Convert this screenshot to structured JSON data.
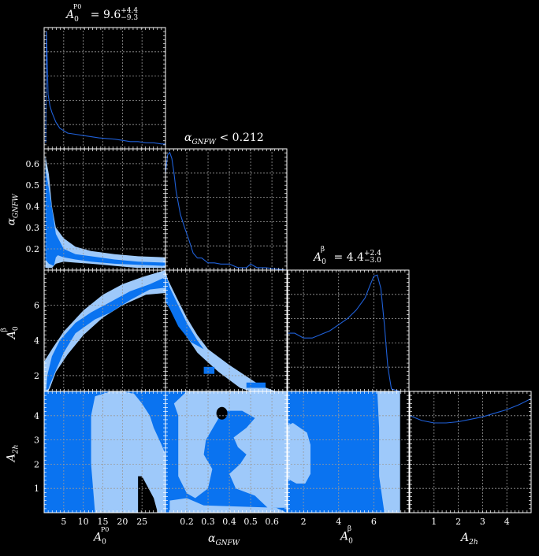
{
  "colors": {
    "background": "#000000",
    "axis": "#ffffff",
    "grid": "#9a9a9a",
    "contour_outer": "#9ec9fa",
    "contour_inner": "#0a73f0",
    "line": "#1f60d8"
  },
  "titles": {
    "p0": {
      "sym": "A",
      "sub": "0",
      "sup": "P0",
      "eq": "= 9.6",
      "plus": "+4.4",
      "minus": "−9.3"
    },
    "alpha": {
      "sym": "α",
      "sub": "GNFW",
      "eq": " < 0.212"
    },
    "beta": {
      "sym": "A",
      "sub": "0",
      "sup": "β",
      "eq": "= 4.4",
      "plus": "+2.4",
      "minus": "−3.0"
    }
  },
  "xlabels": {
    "p0": {
      "sym": "A",
      "sub": "0",
      "sup": "P0"
    },
    "alpha": {
      "sym": "α",
      "sub": "GNFW"
    },
    "beta": {
      "sym": "A",
      "sub": "0",
      "sup": "β"
    },
    "a2h": {
      "sym": "A",
      "sub": "2h"
    }
  },
  "ylabels": {
    "alpha": {
      "sym": "α",
      "sub": "GNFW"
    },
    "beta": {
      "sym": "A",
      "sub": "0",
      "sup": "β"
    },
    "a2h": {
      "sym": "A",
      "sub": "2h"
    }
  },
  "chart_data": {
    "type": "corner",
    "parameters": [
      {
        "id": "p0",
        "range": [
          0,
          31
        ],
        "ticks": [
          "5",
          "10",
          "15",
          "20",
          "25"
        ],
        "tick_values": [
          5,
          10,
          15,
          20,
          25
        ]
      },
      {
        "id": "alpha",
        "range": [
          0.1,
          0.67
        ],
        "ticks": [
          "0.2",
          "0.3",
          "0.4",
          "0.5",
          "0.6"
        ],
        "tick_values": [
          0.2,
          0.3,
          0.4,
          0.5,
          0.6
        ]
      },
      {
        "id": "beta",
        "range": [
          1.1,
          8.0
        ],
        "ticks": [
          "2",
          "4",
          "6"
        ],
        "tick_values": [
          2,
          4,
          6
        ]
      },
      {
        "id": "a2h",
        "range": [
          0,
          5.0
        ],
        "ticks": [
          "1",
          "2",
          "3",
          "4"
        ],
        "tick_values": [
          1,
          2,
          3,
          4
        ]
      }
    ],
    "y_ticks": {
      "alpha": [
        "0.2",
        "0.3",
        "0.4",
        "0.5",
        "0.6"
      ],
      "beta": [
        "2",
        "4",
        "6"
      ],
      "a2h": [
        "1",
        "2",
        "3",
        "4"
      ]
    },
    "marginals": {
      "p0": {
        "x": [
          0.4,
          0.6,
          1,
          1.5,
          2,
          3,
          4,
          6,
          8,
          10,
          12,
          14,
          16,
          18,
          20,
          22,
          24,
          26,
          28,
          30,
          31
        ],
        "y": [
          0.05,
          0.97,
          0.45,
          0.35,
          0.3,
          0.22,
          0.17,
          0.13,
          0.12,
          0.11,
          0.1,
          0.09,
          0.085,
          0.08,
          0.07,
          0.06,
          0.06,
          0.05,
          0.05,
          0.04,
          0.04
        ]
      },
      "alpha": {
        "x": [
          0.1,
          0.11,
          0.12,
          0.13,
          0.14,
          0.15,
          0.17,
          0.19,
          0.21,
          0.23,
          0.25,
          0.27,
          0.3,
          0.33,
          0.36,
          0.4,
          0.44,
          0.48,
          0.5,
          0.53,
          0.57,
          0.62,
          0.67
        ],
        "y": [
          0.8,
          0.95,
          0.97,
          0.92,
          0.8,
          0.65,
          0.46,
          0.35,
          0.25,
          0.14,
          0.1,
          0.1,
          0.06,
          0.06,
          0.05,
          0.05,
          0.02,
          0.02,
          0.05,
          0.02,
          0.02,
          0.01,
          0.0
        ]
      },
      "beta": {
        "x": [
          1.1,
          1.5,
          2.0,
          2.5,
          3.0,
          3.5,
          4.0,
          4.5,
          5.0,
          5.5,
          5.8,
          6.0,
          6.2,
          6.4,
          6.6,
          6.8,
          7.0,
          7.5,
          8.0
        ],
        "y": [
          0.48,
          0.48,
          0.44,
          0.44,
          0.47,
          0.5,
          0.55,
          0.6,
          0.67,
          0.77,
          0.88,
          0.95,
          0.96,
          0.85,
          0.55,
          0.2,
          0.02,
          0.0,
          0.0
        ]
      },
      "a2h": {
        "x": [
          0,
          0.5,
          1,
          1.5,
          2,
          2.5,
          3,
          3.5,
          4,
          4.5,
          5
        ],
        "y": [
          0.8,
          0.76,
          0.74,
          0.74,
          0.75,
          0.77,
          0.79,
          0.82,
          0.85,
          0.89,
          0.94
        ]
      }
    },
    "contours": {
      "alpha_vs_p0": {
        "outer": [
          [
            0.3,
            0.64
          ],
          [
            1.2,
            0.55
          ],
          [
            2,
            0.4
          ],
          [
            3,
            0.3
          ],
          [
            5,
            0.25
          ],
          [
            8,
            0.21
          ],
          [
            12,
            0.19
          ],
          [
            18,
            0.175
          ],
          [
            24,
            0.165
          ],
          [
            31,
            0.16
          ],
          [
            31,
            0.11
          ],
          [
            24,
            0.11
          ],
          [
            18,
            0.12
          ],
          [
            12,
            0.13
          ],
          [
            8,
            0.135
          ],
          [
            5,
            0.14
          ],
          [
            3,
            0.13
          ],
          [
            2,
            0.11
          ],
          [
            0.8,
            0.11
          ],
          [
            0.3,
            0.11
          ]
        ],
        "inner": [
          [
            0.3,
            0.58
          ],
          [
            1.5,
            0.45
          ],
          [
            3,
            0.27
          ],
          [
            5,
            0.2
          ],
          [
            8,
            0.175
          ],
          [
            12,
            0.165
          ],
          [
            18,
            0.15
          ],
          [
            24,
            0.14
          ],
          [
            31,
            0.135
          ],
          [
            31,
            0.12
          ],
          [
            24,
            0.125
          ],
          [
            18,
            0.13
          ],
          [
            12,
            0.14
          ],
          [
            8,
            0.15
          ],
          [
            5,
            0.16
          ],
          [
            3.5,
            0.17
          ],
          [
            3,
            0.16
          ],
          [
            2.5,
            0.12
          ],
          [
            1.2,
            0.13
          ],
          [
            0.3,
            0.15
          ]
        ]
      },
      "beta_vs_p0": {
        "outer": [
          [
            0,
            1.1
          ],
          [
            0,
            2.8
          ],
          [
            2,
            3.5
          ],
          [
            5,
            4.5
          ],
          [
            10,
            5.7
          ],
          [
            15,
            6.6
          ],
          [
            20,
            7.2
          ],
          [
            25,
            7.6
          ],
          [
            31,
            8.0
          ],
          [
            31,
            6.7
          ],
          [
            26,
            6.6
          ],
          [
            20,
            6.0
          ],
          [
            15,
            5.3
          ],
          [
            10,
            4.3
          ],
          [
            6,
            3.2
          ],
          [
            3,
            2.2
          ],
          [
            1.5,
            1.3
          ],
          [
            1,
            1.1
          ]
        ],
        "inner": [
          [
            0.5,
            1.2
          ],
          [
            0.8,
            2.0
          ],
          [
            2,
            3.1
          ],
          [
            4,
            4.0
          ],
          [
            8,
            5.0
          ],
          [
            12,
            5.6
          ],
          [
            17,
            6.2
          ],
          [
            22,
            6.8
          ],
          [
            27,
            7.2
          ],
          [
            31,
            7.6
          ],
          [
            31,
            7.0
          ],
          [
            27,
            6.9
          ],
          [
            22,
            6.3
          ],
          [
            17,
            5.6
          ],
          [
            13,
            5.2
          ],
          [
            8,
            4.4
          ],
          [
            5,
            3.3
          ],
          [
            3,
            2.3
          ],
          [
            1.5,
            1.5
          ],
          [
            1,
            1.2
          ]
        ]
      },
      "a2h_vs_p0": {
        "fill_inner": [
          [
            0,
            0
          ],
          [
            0,
            5
          ],
          [
            31,
            5
          ],
          [
            31,
            0
          ]
        ],
        "outer": [
          [
            13,
            0
          ],
          [
            12,
            2
          ],
          [
            12,
            3
          ],
          [
            12,
            4
          ],
          [
            13,
            4.8
          ],
          [
            17,
            5.0
          ],
          [
            20,
            5.0
          ],
          [
            23,
            4.9
          ],
          [
            25,
            4.5
          ],
          [
            27,
            4.0
          ],
          [
            28,
            3.5
          ],
          [
            30,
            2.8
          ],
          [
            31,
            2.4
          ],
          [
            31,
            0
          ],
          [
            29,
            0
          ],
          [
            28,
            0.5
          ],
          [
            25,
            1.4
          ],
          [
            24,
            1.5
          ],
          [
            24,
            0
          ]
        ],
        "hole": [
          [
            24,
            0
          ],
          [
            24,
            1.5
          ],
          [
            25,
            1.5
          ],
          [
            28,
            0.6
          ],
          [
            29,
            0
          ]
        ]
      },
      "beta_vs_alpha": {
        "outer": [
          [
            0.1,
            8.0
          ],
          [
            0.11,
            7.5
          ],
          [
            0.15,
            6.5
          ],
          [
            0.2,
            5.3
          ],
          [
            0.25,
            4.3
          ],
          [
            0.3,
            3.5
          ],
          [
            0.4,
            2.6
          ],
          [
            0.5,
            1.8
          ],
          [
            0.55,
            1.4
          ],
          [
            0.62,
            1.1
          ],
          [
            0.5,
            1.1
          ],
          [
            0.45,
            1.3
          ],
          [
            0.35,
            2.2
          ],
          [
            0.25,
            3.3
          ],
          [
            0.2,
            4.2
          ],
          [
            0.17,
            5.0
          ],
          [
            0.13,
            6.0
          ],
          [
            0.1,
            6.4
          ]
        ],
        "inner": [
          [
            0.1,
            7.8
          ],
          [
            0.12,
            7.0
          ],
          [
            0.16,
            6.0
          ],
          [
            0.2,
            5.0
          ],
          [
            0.25,
            4.0
          ],
          [
            0.28,
            3.5
          ],
          [
            0.22,
            3.9
          ],
          [
            0.16,
            4.8
          ],
          [
            0.12,
            5.8
          ],
          [
            0.1,
            6.2
          ]
        ],
        "blob1": [
          [
            0.28,
            2.5
          ],
          [
            0.33,
            2.5
          ],
          [
            0.33,
            2.1
          ],
          [
            0.28,
            2.1
          ]
        ],
        "blob2": [
          [
            0.48,
            1.6
          ],
          [
            0.57,
            1.6
          ],
          [
            0.57,
            1.3
          ],
          [
            0.48,
            1.3
          ]
        ]
      },
      "a2h_vs_alpha": {
        "fill_inner": [
          [
            0.1,
            0
          ],
          [
            0.1,
            5
          ],
          [
            0.67,
            5
          ],
          [
            0.67,
            0
          ]
        ],
        "outer": [
          [
            0.2,
            5.0
          ],
          [
            0.67,
            5.0
          ],
          [
            0.67,
            0.2
          ],
          [
            0.58,
            0.2
          ],
          [
            0.52,
            0.7
          ],
          [
            0.43,
            1.0
          ],
          [
            0.4,
            1.6
          ],
          [
            0.45,
            2.0
          ],
          [
            0.48,
            2.4
          ],
          [
            0.44,
            2.7
          ],
          [
            0.42,
            3.1
          ],
          [
            0.48,
            3.5
          ],
          [
            0.52,
            3.9
          ],
          [
            0.46,
            4.2
          ],
          [
            0.37,
            4.2
          ],
          [
            0.33,
            3.6
          ],
          [
            0.29,
            3.0
          ],
          [
            0.28,
            2.4
          ],
          [
            0.32,
            1.8
          ],
          [
            0.3,
            1.0
          ],
          [
            0.24,
            0.6
          ],
          [
            0.2,
            0.8
          ],
          [
            0.16,
            1.5
          ],
          [
            0.16,
            4.0
          ],
          [
            0.14,
            4.5
          ]
        ],
        "lower_outer": [
          [
            0.12,
            0
          ],
          [
            0.12,
            0.5
          ],
          [
            0.2,
            0.6
          ],
          [
            0.28,
            0.3
          ],
          [
            0.62,
            0.2
          ],
          [
            0.67,
            0
          ]
        ]
      },
      "a2h_vs_beta": {
        "fill_inner": [
          [
            1.1,
            0
          ],
          [
            1.1,
            5
          ],
          [
            7.5,
            5
          ],
          [
            7.5,
            0
          ]
        ],
        "outer": [
          [
            1.1,
            3.6
          ],
          [
            1.4,
            3.7
          ],
          [
            2.2,
            3.3
          ],
          [
            2.4,
            2.8
          ],
          [
            2.4,
            1.6
          ],
          [
            2.1,
            1.2
          ],
          [
            1.6,
            1.2
          ],
          [
            1.1,
            1.4
          ]
        ],
        "right_outer": [
          [
            6.2,
            5.0
          ],
          [
            7.5,
            5.0
          ],
          [
            7.5,
            0
          ],
          [
            6.6,
            0
          ],
          [
            6.3,
            1.5
          ],
          [
            6.3,
            3.5
          ]
        ],
        "right_white": [
          [
            7.5,
            5.0
          ],
          [
            8.0,
            5.0
          ],
          [
            8.0,
            0
          ],
          [
            7.5,
            0
          ]
        ]
      }
    }
  }
}
